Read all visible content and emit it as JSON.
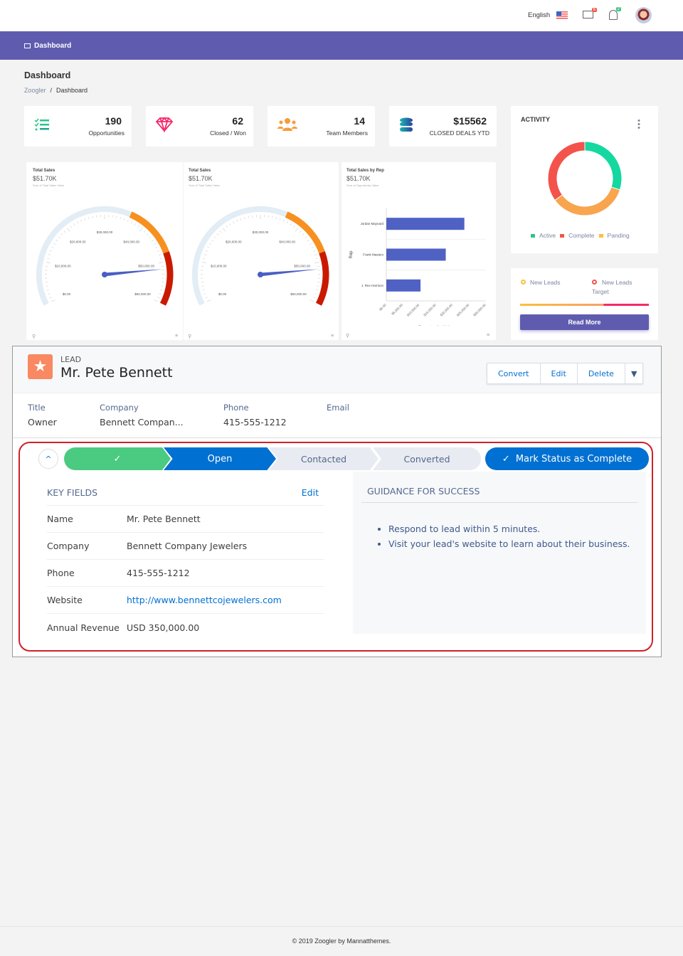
{
  "topbar": {
    "language": "English",
    "mail_count": "6",
    "notif_count": "2"
  },
  "nav": {
    "dashboard": "Dashboard"
  },
  "page": {
    "title": "Dashboard",
    "breadcrumb": [
      "Zoogler",
      "/",
      "Dashboard"
    ]
  },
  "stats": [
    {
      "value": "190",
      "label": "Opportunities",
      "icon": "checklist-icon"
    },
    {
      "value": "62",
      "label": "Closed / Won",
      "icon": "diamond-icon"
    },
    {
      "value": "14",
      "label": "Team Members",
      "icon": "users-icon"
    },
    {
      "value": "$15562",
      "label": "CLOSED DEALS YTD",
      "icon": "database-icon"
    }
  ],
  "gauges": [
    {
      "title": "Total Sales",
      "value": "$51.70K",
      "subtitle": "Sum of Total Sales Value"
    },
    {
      "title": "Total Sales",
      "value": "$51.70K",
      "subtitle": "Sum of Total Sales Value"
    }
  ],
  "barchart": {
    "title": "Total Sales by Rep",
    "value": "$51.70K",
    "subtitle": "Sum of Opportunity Value"
  },
  "activity": {
    "title": "ACTIVITY",
    "legend": [
      "Active",
      "Complete",
      "Panding"
    ]
  },
  "leads": {
    "a": "New Leads",
    "b": "New Leads",
    "b2": "Target",
    "read_more": "Read More"
  },
  "lead": {
    "type": "LEAD",
    "name": "Mr. Pete Bennett",
    "buttons": [
      "Convert",
      "Edit",
      "Delete"
    ],
    "fields_labels": [
      "Title",
      "Company",
      "Phone",
      "Email"
    ],
    "fields_values": [
      "Owner",
      "Bennett Compan...",
      "415-555-1212"
    ],
    "path": {
      "done": "✓",
      "current": "Open",
      "steps": [
        "Contacted",
        "Converted"
      ],
      "mark": "Mark Status as Complete"
    },
    "key_fields": {
      "title": "KEY FIELDS",
      "edit": "Edit",
      "rows": [
        {
          "label": "Name",
          "value": "Mr. Pete Bennett"
        },
        {
          "label": "Company",
          "value": "Bennett Company Jewelers"
        },
        {
          "label": "Phone",
          "value": "415-555-1212"
        },
        {
          "label": "Website",
          "value": "http://www.bennettcojewelers.com"
        },
        {
          "label": "Annual Revenue",
          "value": "USD 350,000.00"
        }
      ]
    },
    "guidance": {
      "title": "GUIDANCE FOR SUCCESS",
      "items": [
        "Respond to lead within 5 minutes.",
        "Visit your lead's website to learn about their business."
      ]
    }
  },
  "footer": "© 2019 Zoogler by Mannatthemes.",
  "chart_data": [
    {
      "type": "gauge",
      "title": "Total Sales",
      "value": 51700,
      "range": [
        0,
        60000
      ],
      "ticks": [
        "$0.00",
        "$10,000.00",
        "$20,000.00",
        "$30,000.00",
        "$40,000.00",
        "$50,000.00",
        "$60,000.00"
      ],
      "bands": [
        {
          "to": 36000,
          "color": "#e2edf5"
        },
        {
          "to": 48000,
          "color": "#f7901e"
        },
        {
          "to": 60000,
          "color": "#c91a00"
        }
      ]
    },
    {
      "type": "gauge",
      "title": "Total Sales",
      "value": 51700,
      "range": [
        0,
        60000
      ],
      "ticks": [
        "$0.00",
        "$10,000.00",
        "$20,000.00",
        "$30,000.00",
        "$40,000.00",
        "$50,000.00",
        "$60,000.00"
      ],
      "bands": [
        {
          "to": 36000,
          "color": "#e2edf5"
        },
        {
          "to": 48000,
          "color": "#f7901e"
        },
        {
          "to": 60000,
          "color": "#c91a00"
        }
      ]
    },
    {
      "type": "bar",
      "title": "Total Sales by Rep",
      "categories": [
        "Jordan Maynard",
        "Frank Masters",
        "J. Rex Harrison"
      ],
      "values": [
        23500,
        17900,
        10300
      ],
      "xlabel": "Opportunity Value",
      "ylabel": "Rep",
      "xlim": [
        0,
        30000
      ],
      "xticks": [
        "$0.00",
        "$5,000.00",
        "$10,000.00",
        "$15,000.00",
        "$20,000.00",
        "$25,000.00",
        "$30,000.00"
      ],
      "legend": "Opportunity Value",
      "color": "#4f62c4"
    },
    {
      "type": "pie",
      "title": "ACTIVITY",
      "categories": [
        "Active",
        "Panding",
        "Complete"
      ],
      "values": [
        30,
        35,
        35
      ],
      "colors": [
        "#14d8a0",
        "#f8a54e",
        "#f3534a"
      ]
    }
  ]
}
